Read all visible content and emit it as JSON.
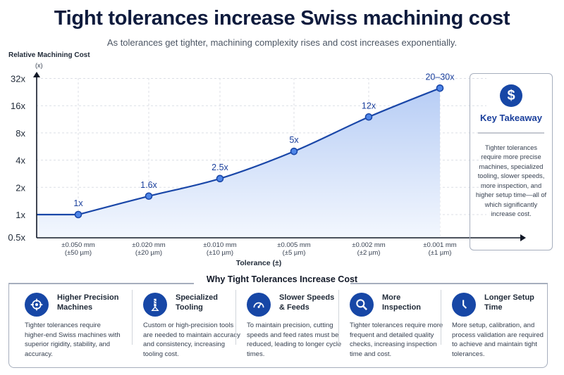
{
  "title": "Tight tolerances increase Swiss machining cost",
  "subtitle": "As tolerances get tighter, machining complexity rises and cost increases exponentially.",
  "chart_data": {
    "type": "line",
    "ylabel": "Relative Machining Cost",
    "yunit": "(x)",
    "xlabel": "Tolerance (±)",
    "yscale": "log2",
    "yticks": [
      {
        "v": 32,
        "label": "32x"
      },
      {
        "v": 16,
        "label": "16x"
      },
      {
        "v": 8,
        "label": "8x"
      },
      {
        "v": 4,
        "label": "4x"
      },
      {
        "v": 2,
        "label": "2x"
      },
      {
        "v": 1,
        "label": "1x"
      },
      {
        "v": 0.5,
        "label": "0.5x"
      }
    ],
    "categories": [
      {
        "mm": "±0.050 mm",
        "um": "(±50 µm)"
      },
      {
        "mm": "±0.020 mm",
        "um": "(±20 µm)"
      },
      {
        "mm": "±0.010 mm",
        "um": "(±10 µm)"
      },
      {
        "mm": "±0.005 mm",
        "um": "(±5 µm)"
      },
      {
        "mm": "±0.002 mm",
        "um": "(±2 µm)"
      },
      {
        "mm": "±0.001 mm",
        "um": "(±1 µm)"
      }
    ],
    "values": [
      1,
      1.6,
      2.5,
      5,
      12,
      25
    ],
    "labels": [
      "1x",
      "1.6x",
      "2.5x",
      "5x",
      "12x",
      "20–30x"
    ],
    "grid": true,
    "line_color": "#1a47a8"
  },
  "takeaway": {
    "icon": "$",
    "title": "Key Takeaway",
    "text": "Tighter tolerances require more precise machines, specialized tooling, slower speeds, more inspection, and higher setup time—all of which significantly increase cost."
  },
  "why": {
    "title": "Why Tight Tolerances Increase Cost",
    "cards": [
      {
        "icon": "crosshair-icon",
        "title": "Higher Precision Machines",
        "text": "Tighter tolerances require higher-end Swiss machines with superior rigidity, stability, and accuracy."
      },
      {
        "icon": "drill-bit-icon",
        "title": "Specialized Tooling",
        "text": "Custom or high-precision tools are needed to maintain accuracy and consistency, increasing tooling cost."
      },
      {
        "icon": "speedometer-icon",
        "title": "Slower Speeds & Feeds",
        "text": "To maintain precision, cutting speeds and feed rates must be reduced, leading to longer cycle times."
      },
      {
        "icon": "magnifier-icon",
        "title": "More Inspection",
        "text": "Tighter tolerances require more frequent and detailed quality checks, increasing inspection time and cost."
      },
      {
        "icon": "clock-icon",
        "title": "Longer Setup Time",
        "text": "More setup, calibration, and process validation are required to achieve and maintain tight tolerances."
      }
    ]
  }
}
